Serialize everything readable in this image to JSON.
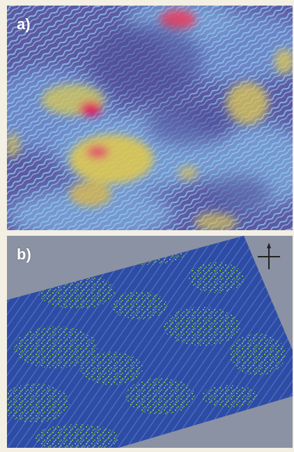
{
  "panels": [
    {
      "label": "a)"
    },
    {
      "label": "b)"
    }
  ],
  "colors": {
    "page_bg": "#f3efe3",
    "panel_a_base": "#5a5aa2",
    "panel_a_wave": "#86b9e4",
    "panel_a_hot_yellow": "#e9d645",
    "panel_a_hot_red": "#e2155a",
    "panel_b_surround": "#8b92a4",
    "panel_b_base": "#2d4ca6",
    "panel_b_green": "#79c43a"
  },
  "icons": {
    "compass": "north-arrow-compass-icon"
  }
}
